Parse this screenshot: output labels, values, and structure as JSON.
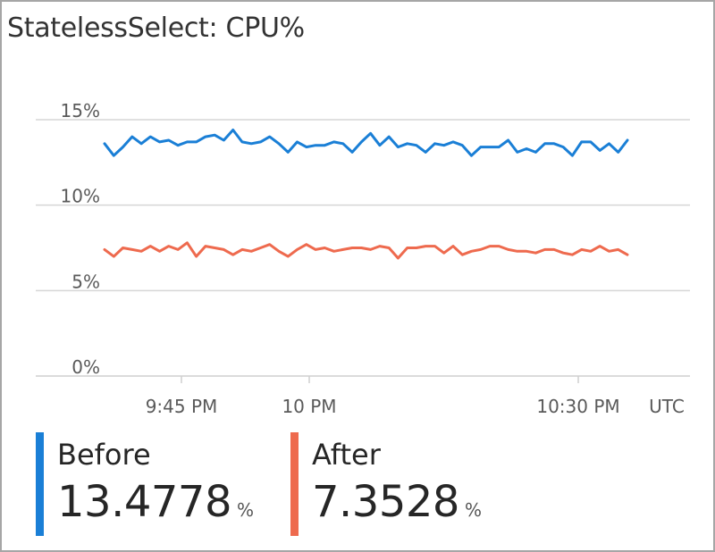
{
  "title": "StatelessSelect: CPU%",
  "colors": {
    "before": "#1a7fd6",
    "after": "#ee6a4e",
    "grid": "#d6d6d6",
    "tick_text": "#5a5a5a"
  },
  "legend": [
    {
      "name": "Before",
      "value": "13.4778",
      "unit": "%",
      "color": "#1a7fd6"
    },
    {
      "name": "After",
      "value": "7.3528",
      "unit": "%",
      "color": "#ee6a4e"
    }
  ],
  "chart_data": {
    "type": "line",
    "title": "StatelessSelect: CPU%",
    "xlabel": "",
    "ylabel": "",
    "ylim": [
      0,
      15
    ],
    "y_ticks": [
      0,
      5,
      10,
      15
    ],
    "y_tick_labels": [
      "0%",
      "5%",
      "10%",
      "15%"
    ],
    "x_tick_labels": [
      "9:45 PM",
      "10 PM",
      "10:30 PM"
    ],
    "x_tick_positions": [
      "9:45 PM",
      "10 PM",
      "10:30 PM"
    ],
    "timezone_label": "UTC",
    "grid": true,
    "x": [
      "9:37 PM",
      "9:38 PM",
      "9:39 PM",
      "9:40 PM",
      "9:41 PM",
      "9:42 PM",
      "9:43 PM",
      "9:44 PM",
      "9:45 PM",
      "9:46 PM",
      "9:47 PM",
      "9:48 PM",
      "9:49 PM",
      "9:50 PM",
      "9:51 PM",
      "9:52 PM",
      "9:53 PM",
      "9:54 PM",
      "9:55 PM",
      "9:56 PM",
      "9:57 PM",
      "9:58 PM",
      "9:59 PM",
      "10:00 PM",
      "10:01 PM",
      "10:02 PM",
      "10:03 PM",
      "10:04 PM",
      "10:05 PM",
      "10:06 PM",
      "10:07 PM",
      "10:08 PM",
      "10:09 PM",
      "10:10 PM",
      "10:11 PM",
      "10:12 PM",
      "10:13 PM",
      "10:14 PM",
      "10:15 PM",
      "10:16 PM",
      "10:17 PM",
      "10:18 PM",
      "10:19 PM",
      "10:20 PM",
      "10:21 PM",
      "10:22 PM",
      "10:23 PM",
      "10:24 PM",
      "10:25 PM",
      "10:26 PM",
      "10:27 PM",
      "10:28 PM",
      "10:29 PM",
      "10:30 PM",
      "10:31 PM",
      "10:32 PM",
      "10:33 PM",
      "10:34 PM"
    ],
    "series": [
      {
        "name": "Before",
        "color": "#1a7fd6",
        "values": [
          13.6,
          12.9,
          13.4,
          14.0,
          13.6,
          14.0,
          13.7,
          13.8,
          13.5,
          13.7,
          13.7,
          14.0,
          14.1,
          13.8,
          14.4,
          13.7,
          13.6,
          13.7,
          14.0,
          13.6,
          13.1,
          13.7,
          13.4,
          13.5,
          13.5,
          13.7,
          13.6,
          13.1,
          13.7,
          14.2,
          13.5,
          14.0,
          13.4,
          13.6,
          13.5,
          13.1,
          13.6,
          13.5,
          13.7,
          13.5,
          12.9,
          13.4,
          13.4,
          13.4,
          13.8,
          13.1,
          13.3,
          13.1,
          13.6,
          13.6,
          13.4,
          12.9,
          13.7,
          13.7,
          13.2,
          13.6,
          13.1,
          13.8
        ]
      },
      {
        "name": "After",
        "color": "#ee6a4e",
        "values": [
          7.4,
          7.0,
          7.5,
          7.4,
          7.3,
          7.6,
          7.3,
          7.6,
          7.4,
          7.8,
          7.0,
          7.6,
          7.5,
          7.4,
          7.1,
          7.4,
          7.3,
          7.5,
          7.7,
          7.3,
          7.0,
          7.4,
          7.7,
          7.4,
          7.5,
          7.3,
          7.4,
          7.5,
          7.5,
          7.4,
          7.6,
          7.5,
          6.9,
          7.5,
          7.5,
          7.6,
          7.6,
          7.2,
          7.6,
          7.1,
          7.3,
          7.4,
          7.6,
          7.6,
          7.4,
          7.3,
          7.3,
          7.2,
          7.4,
          7.4,
          7.2,
          7.1,
          7.4,
          7.3,
          7.6,
          7.3,
          7.4,
          7.1
        ]
      }
    ]
  }
}
